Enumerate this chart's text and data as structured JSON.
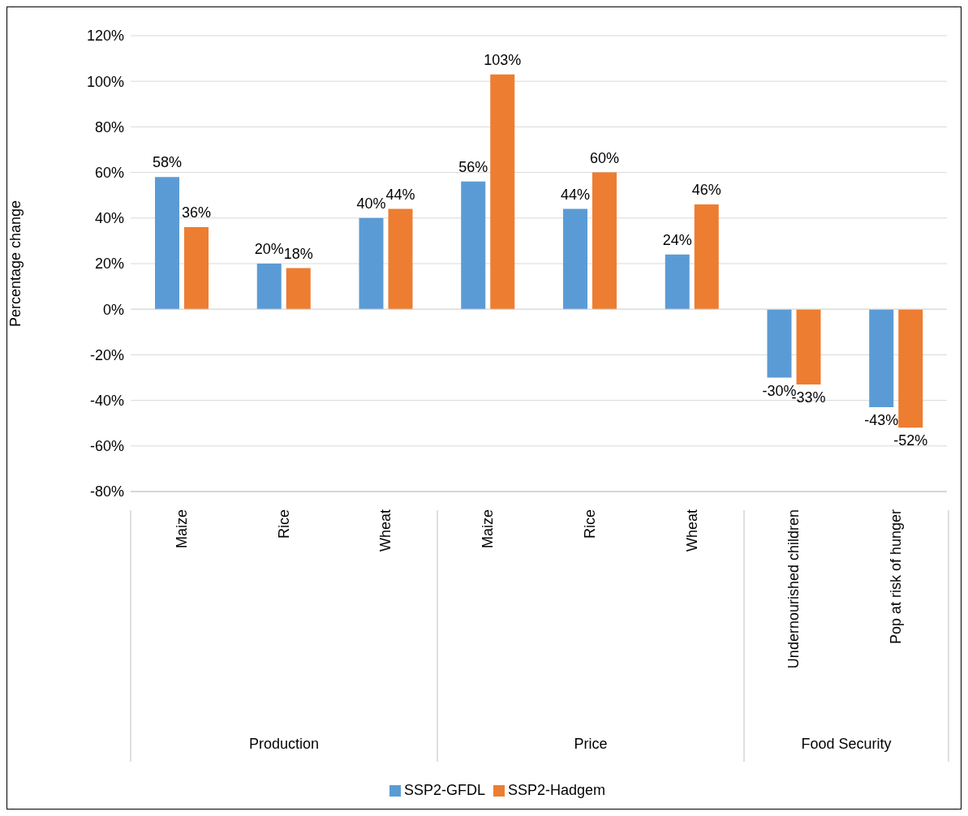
{
  "chart_data": {
    "type": "bar",
    "ylabel": "Percentage change",
    "categories": [
      "Maize",
      "Rice",
      "Wheat",
      "Maize",
      "Rice",
      "Wheat",
      "Undernourished children",
      "Pop at risk of hunger"
    ],
    "series": [
      {
        "name": "SSP2-GFDL",
        "color": "#5b9bd5",
        "values": [
          58,
          20,
          40,
          56,
          44,
          24,
          -30,
          -43
        ],
        "value_labels": [
          "58%",
          "20%",
          "40%",
          "56%",
          "44%",
          "24%",
          "-30%",
          "-43%"
        ]
      },
      {
        "name": "SSP2-Hadgem",
        "color": "#ed7d31",
        "values": [
          36,
          18,
          44,
          103,
          60,
          46,
          -33,
          -52
        ],
        "value_labels": [
          "36%",
          "18%",
          "44%",
          "103%",
          "60%",
          "46%",
          "-33%",
          "-52%"
        ]
      }
    ],
    "annotations": [
      "Production",
      "Price",
      "Food Security"
    ],
    "ylim": [
      -80,
      120
    ],
    "yticks": [
      {
        "value": -80,
        "label": "-80%"
      },
      {
        "value": -60,
        "label": "-60%"
      },
      {
        "value": -40,
        "label": "-40%"
      },
      {
        "value": -20,
        "label": "-20%"
      },
      {
        "value": 0,
        "label": "0%"
      },
      {
        "value": 20,
        "label": "20%"
      },
      {
        "value": 40,
        "label": "40%"
      },
      {
        "value": 60,
        "label": "60%"
      },
      {
        "value": 80,
        "label": "80%"
      },
      {
        "value": 100,
        "label": "100%"
      },
      {
        "value": 120,
        "label": "120%"
      }
    ],
    "grid": "y",
    "legend": "bottom"
  }
}
